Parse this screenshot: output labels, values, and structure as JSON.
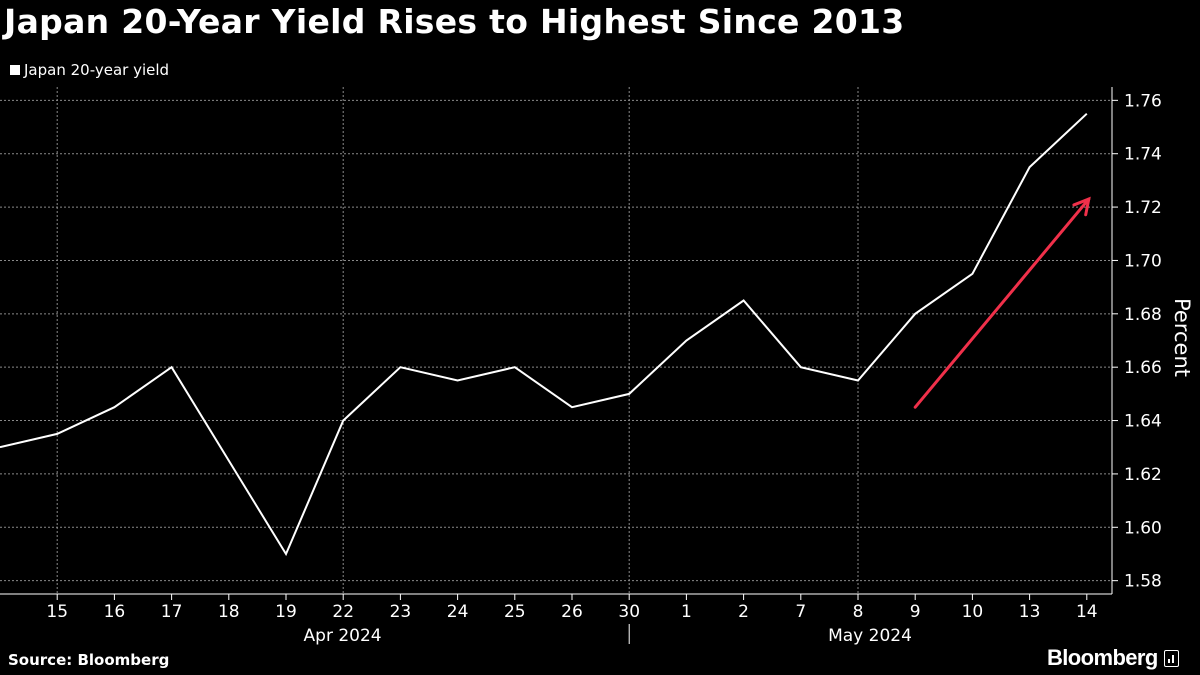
{
  "title": "Japan 20-Year Yield Rises to Highest Since 2013",
  "legend_label": "Japan 20-year yield",
  "source": "Source: Bloomberg",
  "brand": "Bloomberg",
  "colors": {
    "background": "#000000",
    "series": "#ffffff",
    "arrow": "#f0304a",
    "grid": "#8a8a8a"
  },
  "chart_data": {
    "type": "line",
    "series": [
      {
        "name": "Japan 20-year yield",
        "x": [
          "Apr 12",
          "Apr 15",
          "Apr 16",
          "Apr 17",
          "Apr 18",
          "Apr 19",
          "Apr 22",
          "Apr 23",
          "Apr 24",
          "Apr 25",
          "Apr 26",
          "Apr 30",
          "May 1",
          "May 2",
          "May 7",
          "May 8",
          "May 9",
          "May 10",
          "May 13",
          "May 14"
        ],
        "values": [
          1.63,
          1.635,
          1.645,
          1.66,
          1.625,
          1.59,
          1.64,
          1.66,
          1.655,
          1.66,
          1.645,
          1.65,
          1.67,
          1.685,
          1.66,
          1.655,
          1.68,
          1.695,
          1.735,
          1.755
        ]
      }
    ],
    "x_tick_labels": [
      "15",
      "16",
      "17",
      "18",
      "19",
      "22",
      "23",
      "24",
      "25",
      "26",
      "30",
      "1",
      "2",
      "7",
      "8",
      "9",
      "10",
      "13",
      "14"
    ],
    "month_labels": [
      "Apr 2024",
      "May 2024"
    ],
    "ylabel": "Percent",
    "y_ticks": [
      "1.58",
      "1.60",
      "1.62",
      "1.64",
      "1.66",
      "1.68",
      "1.70",
      "1.72",
      "1.74",
      "1.76"
    ],
    "ylim": [
      1.575,
      1.765
    ],
    "grid": true,
    "y_axis_side": "right",
    "annotation": {
      "type": "arrow",
      "from": {
        "x": "May 9",
        "y": 1.645
      },
      "to": {
        "x": "May 14",
        "y": 1.723
      }
    }
  }
}
